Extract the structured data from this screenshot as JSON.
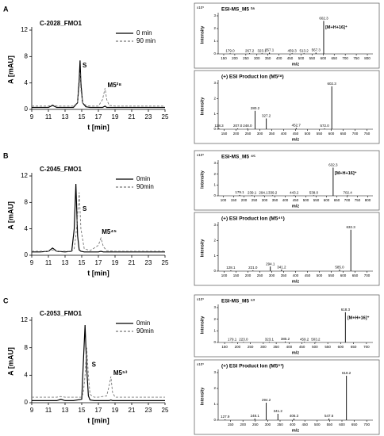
{
  "chart_data": [
    {
      "type": "line",
      "panel_label": "A",
      "title": "C-2028_FMO1",
      "xlabel": "t [min]",
      "ylabel": "A [mAU]",
      "xlim": [
        9,
        25
      ],
      "xticks": [
        9,
        11,
        13,
        15,
        17,
        19,
        21,
        23,
        25
      ],
      "ylim": [
        0,
        12
      ],
      "yticks": [
        0,
        4,
        8,
        12
      ],
      "legend": "upper-right",
      "x": [
        9,
        10,
        11,
        11.5,
        12,
        13,
        14,
        14.5,
        14.7,
        14.8,
        14.9,
        15.1,
        15.5,
        16,
        17,
        17.5,
        17.8,
        18,
        18.3,
        19,
        20,
        21,
        22,
        23,
        24,
        25
      ],
      "series": [
        {
          "name": "0 min",
          "color": "#000000",
          "dash": false,
          "values": [
            0.3,
            0.3,
            0.3,
            0.6,
            0.3,
            0.3,
            0.3,
            1,
            4.5,
            7.4,
            4,
            1,
            0.4,
            0.3,
            0.3,
            0.3,
            0.5,
            0.3,
            0.3,
            0.3,
            0.3,
            0.3,
            0.3,
            0.3,
            0.3,
            0.3
          ]
        },
        {
          "name": "90 min",
          "color": "#777777",
          "dash": true,
          "values": [
            0.5,
            0.5,
            0.5,
            0.7,
            0.5,
            0.5,
            0.5,
            1,
            3.5,
            5.6,
            3,
            1,
            0.6,
            0.5,
            0.5,
            1.5,
            3.2,
            1.5,
            0.6,
            0.5,
            0.5,
            0.5,
            0.5,
            0.5,
            0.5,
            0.5
          ]
        }
      ],
      "annotations": [
        {
          "text": "S",
          "x": 15.1,
          "y": 6.6
        },
        {
          "text": "M5²⁸",
          "x": 18.1,
          "y": 3.6
        }
      ]
    },
    {
      "type": "stem",
      "title": "ESI-MS_M5 ²⁸",
      "y_scale": "x10⁵",
      "xlabel": "m/z",
      "ylabel": "Intensity",
      "xlim": [
        125,
        825
      ],
      "xticks": [
        150,
        200,
        250,
        300,
        350,
        400,
        450,
        500,
        550,
        600,
        650,
        700,
        750,
        800
      ],
      "ylim": [
        0,
        3
      ],
      "yticks": [
        0,
        1,
        2,
        3
      ],
      "x": [
        179.0,
        267.2,
        323.1,
        357.1,
        459.3,
        513.2,
        567.3,
        602.3
      ],
      "x_labels": [
        "179.0",
        "267.2",
        "323.1",
        "357.1",
        "459.3",
        "513.2",
        "567.3",
        "602.3"
      ],
      "values": [
        0.05,
        0.05,
        0.05,
        0.1,
        0.05,
        0.05,
        0.1,
        2.6
      ],
      "color": "#000000",
      "annotations": [
        {
          "text": "[M+H+16]⁺",
          "x": 610,
          "y": 2.1
        }
      ]
    },
    {
      "type": "stem",
      "title": "(+) ESI Product Ion (M5²⁸)",
      "xlabel": "m/z",
      "ylabel": "Intensity",
      "xlim": [
        125,
        775
      ],
      "xticks": [
        150,
        200,
        250,
        300,
        350,
        400,
        450,
        500,
        550,
        600,
        650,
        700,
        750
      ],
      "ylim": [
        0,
        3
      ],
      "yticks": [
        0,
        1,
        2,
        3
      ],
      "x": [
        128.3,
        207.0,
        248.0,
        280.2,
        327.2,
        452.7,
        572.0,
        602.3
      ],
      "x_labels": [
        "128.3",
        "207.0",
        "248.0",
        "280.2",
        "327.2",
        "452.7",
        "572.0",
        "602.3"
      ],
      "values": [
        0.05,
        0.05,
        0.05,
        1.2,
        0.7,
        0.08,
        0.05,
        2.8
      ],
      "color": "#000000"
    },
    {
      "type": "line",
      "panel_label": "B",
      "title": "C-2045_FMO1",
      "xlabel": "t [min]",
      "ylabel": "A [mAU]",
      "xlim": [
        9,
        25
      ],
      "xticks": [
        9,
        11,
        13,
        15,
        17,
        19,
        21,
        23,
        25
      ],
      "ylim": [
        0,
        12
      ],
      "yticks": [
        0,
        4,
        8,
        12
      ],
      "legend": "upper-right",
      "x": [
        9,
        10,
        11,
        11.5,
        12,
        13,
        13.8,
        14.1,
        14.3,
        14.5,
        14.7,
        14.9,
        15.3,
        16,
        17,
        17.3,
        17.6,
        18,
        19,
        20,
        21,
        22,
        23,
        24,
        25
      ],
      "series": [
        {
          "name": "0min",
          "color": "#000000",
          "dash": false,
          "values": [
            0.5,
            0.5,
            0.6,
            1.1,
            0.6,
            0.5,
            0.6,
            4,
            10.8,
            3,
            0.8,
            0.6,
            0.5,
            0.5,
            0.5,
            0.6,
            0.5,
            0.5,
            0.5,
            0.5,
            0.5,
            0.5,
            0.5,
            0.5,
            0.5
          ]
        },
        {
          "name": "90min",
          "color": "#777777",
          "dash": true,
          "values": [
            0.6,
            0.6,
            0.6,
            0.8,
            0.6,
            0.6,
            0.6,
            1,
            3,
            6,
            9.5,
            4,
            1,
            0.7,
            1.5,
            2.6,
            1.3,
            0.7,
            0.6,
            0.6,
            0.6,
            0.6,
            0.6,
            0.6,
            0.6
          ]
        }
      ],
      "annotations": [
        {
          "text": "S",
          "x": 15.1,
          "y": 7
        },
        {
          "text": "M5⁴⁵",
          "x": 17.4,
          "y": 3.5
        }
      ]
    },
    {
      "type": "stem",
      "title": "ESI-MS_M5 ⁴⁵",
      "y_scale": "x10⁵",
      "xlabel": "m/z",
      "ylabel": "Intensity",
      "xlim": [
        75,
        825
      ],
      "xticks": [
        100,
        150,
        200,
        250,
        300,
        350,
        400,
        450,
        500,
        550,
        600,
        650,
        700,
        750,
        800
      ],
      "ylim": [
        0,
        3
      ],
      "yticks": [
        0,
        1,
        2,
        3
      ],
      "x": [
        179.1,
        239.1,
        294.1,
        339.2,
        443.2,
        538.0,
        632.3,
        702.4
      ],
      "x_labels": [
        "179.1",
        "239.1",
        "294.1",
        "339.2",
        "443.2",
        "538.0",
        "632.3",
        "702.4"
      ],
      "values": [
        0.08,
        0.05,
        0.05,
        0.05,
        0.05,
        0.05,
        2.6,
        0.05
      ],
      "color": "#000000",
      "annotations": [
        {
          "text": "[M+H+16]⁺",
          "x": 640,
          "y": 2.1
        }
      ]
    },
    {
      "type": "stem",
      "title": "(+) ESI Product Ion (M5⁴⁵)",
      "xlabel": "m/z",
      "ylabel": "Intensity",
      "xlim": [
        75,
        725
      ],
      "xticks": [
        100,
        150,
        200,
        250,
        300,
        350,
        400,
        450,
        500,
        550,
        600,
        650,
        700
      ],
      "ylim": [
        0,
        3
      ],
      "yticks": [
        0,
        1,
        2,
        3
      ],
      "x": [
        128.1,
        221.0,
        294.1,
        341.2,
        585.0,
        632.3
      ],
      "x_labels": [
        "128.1",
        "221.0",
        "294.1",
        "341.2",
        "585.0",
        "632.3"
      ],
      "values": [
        0.05,
        0.05,
        0.3,
        0.1,
        0.1,
        2.7
      ],
      "color": "#000000"
    },
    {
      "type": "line",
      "panel_label": "C",
      "title": "C-2053_FMO1",
      "xlabel": "t [min]",
      "ylabel": "A [mAU]",
      "xlim": [
        9,
        25
      ],
      "xticks": [
        9,
        11,
        13,
        15,
        17,
        19,
        21,
        23,
        25
      ],
      "ylim": [
        0,
        12
      ],
      "yticks": [
        0,
        4,
        8,
        12
      ],
      "legend": "upper-right",
      "x": [
        9,
        10,
        11,
        12,
        12.5,
        13,
        14,
        15,
        15.2,
        15.4,
        15.6,
        15.8,
        16,
        16.5,
        17,
        18,
        18.3,
        18.5,
        18.7,
        19,
        20,
        21,
        22,
        23,
        24,
        25
      ],
      "series": [
        {
          "name": "0min",
          "color": "#000000",
          "dash": false,
          "values": [
            0.3,
            0.3,
            0.3,
            0.3,
            0.5,
            0.3,
            0.3,
            0.5,
            6,
            11.3,
            5,
            1,
            0.4,
            0.3,
            0.3,
            0.3,
            0.3,
            0.4,
            0.3,
            0.3,
            0.3,
            0.3,
            0.3,
            0.3,
            0.3,
            0.3
          ]
        },
        {
          "name": "90min",
          "color": "#777777",
          "dash": true,
          "values": [
            0.8,
            0.8,
            0.8,
            0.8,
            0.9,
            0.8,
            0.8,
            0.8,
            1.5,
            4,
            8,
            4,
            1.2,
            0.8,
            0.8,
            1,
            2.5,
            3.8,
            1.5,
            0.8,
            0.8,
            0.8,
            0.8,
            0.8,
            0.8,
            0.8
          ]
        }
      ],
      "annotations": [
        {
          "text": "S",
          "x": 16.2,
          "y": 5.5
        },
        {
          "text": "M5⁵³",
          "x": 18.8,
          "y": 4.3
        }
      ]
    },
    {
      "type": "stem",
      "title": "ESI-MS_M5 ⁵³",
      "y_scale": "x10⁵",
      "xlabel": "m/z",
      "ylabel": "Intensity",
      "xlim": [
        125,
        725
      ],
      "xticks": [
        150,
        200,
        250,
        300,
        350,
        400,
        450,
        500,
        550,
        600,
        650,
        700
      ],
      "ylim": [
        0,
        3
      ],
      "yticks": [
        0,
        1,
        2,
        3
      ],
      "x": [
        179.1,
        223.0,
        323.1,
        385.2,
        459.2,
        503.2,
        618.3
      ],
      "x_labels": [
        "179.1",
        "223.0",
        "323.1",
        "385.2",
        "459.2",
        "503.2",
        "618.3"
      ],
      "values": [
        0.05,
        0.05,
        0.05,
        0.08,
        0.05,
        0.05,
        2.6
      ],
      "color": "#000000",
      "annotations": [
        {
          "text": "[M+H+16]⁺",
          "x": 626,
          "y": 2.1
        }
      ]
    },
    {
      "type": "stem",
      "title": "(+) ESI Product Ion (M5⁵³)",
      "y_scale": "x10⁵",
      "xlabel": "m/z",
      "ylabel": "Intensity",
      "xlim": [
        100,
        725
      ],
      "xticks": [
        150,
        200,
        250,
        300,
        350,
        400,
        450,
        500,
        550,
        600,
        650,
        700
      ],
      "ylim": [
        0,
        3
      ],
      "yticks": [
        0,
        1,
        2,
        3
      ],
      "x": [
        127.9,
        248.1,
        294.2,
        341.2,
        406.3,
        547.6,
        618.2
      ],
      "x_labels": [
        "127.9",
        "248.1",
        "294.2",
        "341.2",
        "406.3",
        "547.6",
        "618.2"
      ],
      "values": [
        0.05,
        0.1,
        1.1,
        0.4,
        0.1,
        0.1,
        2.8
      ],
      "color": "#000000"
    }
  ]
}
